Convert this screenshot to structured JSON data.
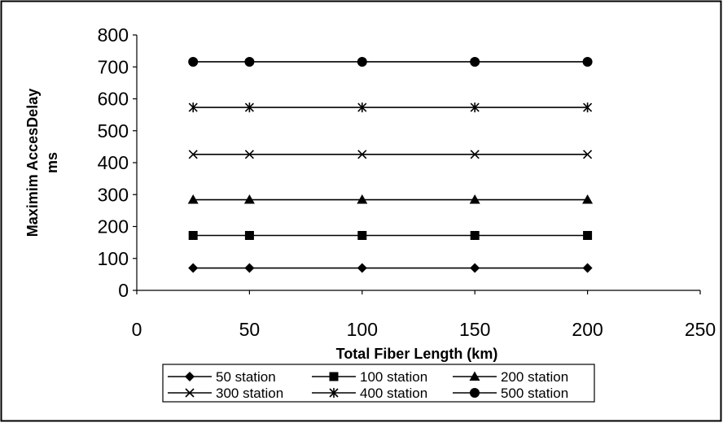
{
  "chart_data": {
    "type": "line",
    "title": "",
    "xlabel": "Total Fiber Length (km)",
    "ylabel_lines": [
      "Maximim AccesDelay",
      "ms"
    ],
    "xlim": [
      0,
      250
    ],
    "ylim": [
      0,
      800
    ],
    "x_ticks": [
      0,
      50,
      100,
      150,
      200,
      250
    ],
    "y_ticks": [
      0,
      100,
      200,
      300,
      400,
      500,
      600,
      700,
      800
    ],
    "grid": false,
    "legend_position": "bottom",
    "x": [
      25,
      50,
      100,
      150,
      200
    ],
    "series": [
      {
        "name": "50 station",
        "marker": "diamond",
        "values": [
          70,
          70,
          70,
          70,
          70
        ]
      },
      {
        "name": "100 station",
        "marker": "square",
        "values": [
          172,
          172,
          172,
          172,
          172
        ]
      },
      {
        "name": "200 station",
        "marker": "triangle",
        "values": [
          284,
          284,
          284,
          284,
          284
        ]
      },
      {
        "name": "300 station",
        "marker": "x",
        "values": [
          426,
          426,
          426,
          426,
          426
        ]
      },
      {
        "name": "400 station",
        "marker": "asterisk",
        "values": [
          573,
          573,
          573,
          573,
          573
        ]
      },
      {
        "name": "500 station",
        "marker": "circle",
        "values": [
          716,
          716,
          716,
          716,
          716
        ]
      }
    ],
    "colors": {
      "line": "#000000",
      "frame": "#000000",
      "background": "#ffffff"
    }
  }
}
